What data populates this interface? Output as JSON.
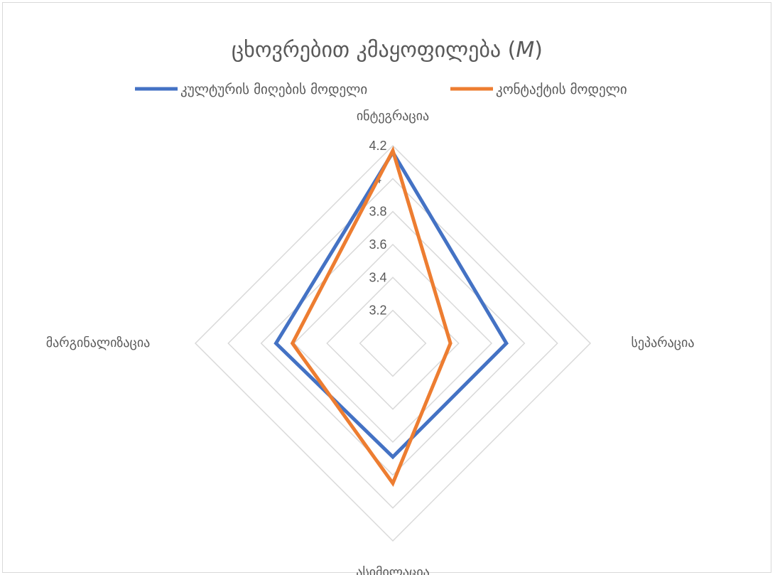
{
  "chart_data": {
    "type": "radar",
    "title": "ცხოვრებით კმაყოფილება (",
    "title_italic": "M",
    "title_close": ")",
    "categories": [
      "ინტეგრაცია",
      "სეპარაცია",
      "ასიმილაცია",
      "მარგინალიზაცია"
    ],
    "axis_ticks": [
      "3.2",
      "3.4",
      "3.6",
      "3.8",
      "4",
      "4.2"
    ],
    "r_range": [
      3.0,
      4.2
    ],
    "grid": true,
    "legend_position": "top",
    "series": [
      {
        "name": "კულტურის მიღების მოდელი",
        "color": "#4472C4",
        "values": [
          4.16,
          3.69,
          3.69,
          3.71
        ]
      },
      {
        "name": "კონტაქტის მოდელი",
        "color": "#ED7D31",
        "values": [
          4.17,
          3.35,
          3.85,
          3.61
        ]
      }
    ]
  }
}
